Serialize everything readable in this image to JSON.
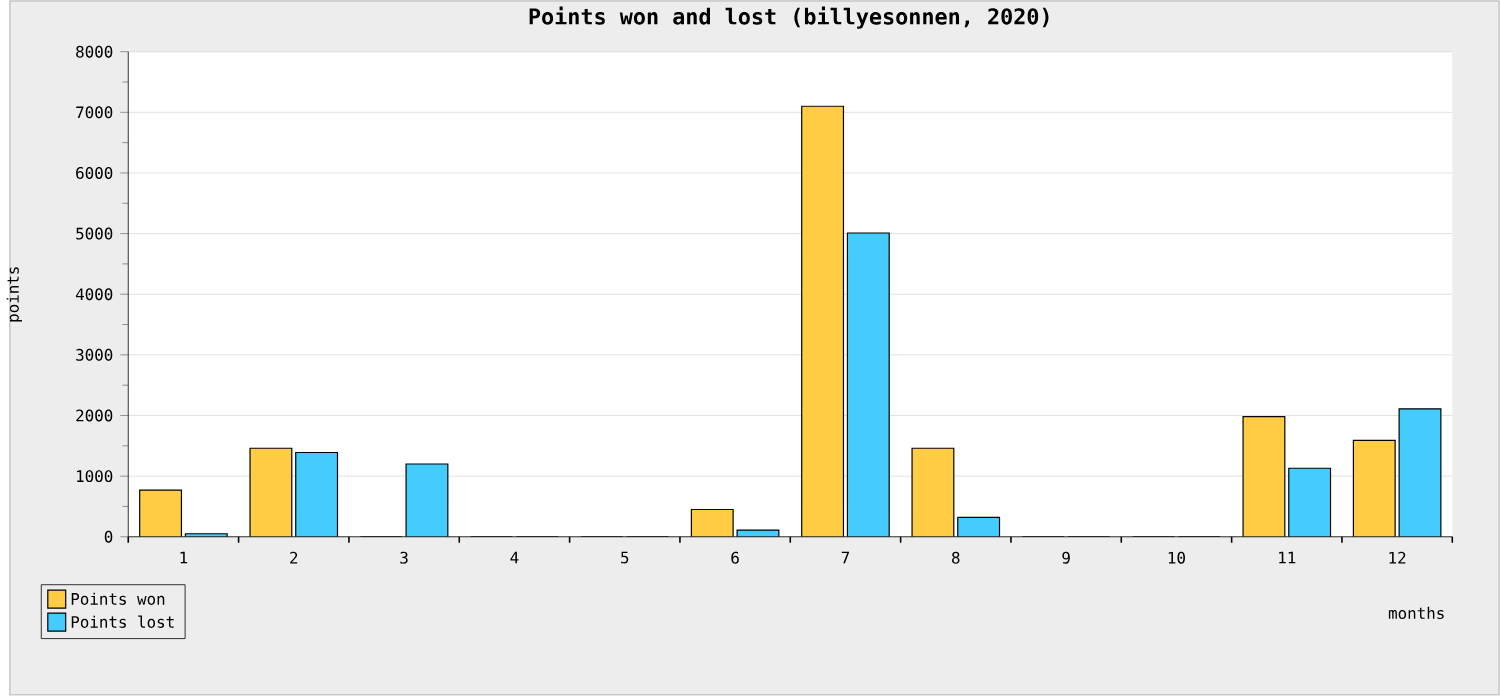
{
  "chart_data": {
    "type": "bar",
    "title": "Points won and lost (billyesonnen, 2020)",
    "xlabel": "months",
    "ylabel": "points",
    "categories": [
      "1",
      "2",
      "3",
      "4",
      "5",
      "6",
      "7",
      "8",
      "9",
      "10",
      "11",
      "12"
    ],
    "series": [
      {
        "name": "Points won",
        "color": "#ffcc44",
        "values": [
          770,
          1460,
          0,
          0,
          0,
          450,
          7100,
          1460,
          0,
          0,
          1980,
          1590
        ]
      },
      {
        "name": "Points lost",
        "color": "#44ccff",
        "values": [
          50,
          1390,
          1200,
          0,
          0,
          110,
          5010,
          320,
          0,
          0,
          1130,
          2110
        ]
      }
    ],
    "ylim": [
      0,
      8000
    ],
    "yticks": [
      0,
      1000,
      2000,
      3000,
      4000,
      5000,
      6000,
      7000,
      8000
    ],
    "grid": "y",
    "legend": "bottom left"
  }
}
